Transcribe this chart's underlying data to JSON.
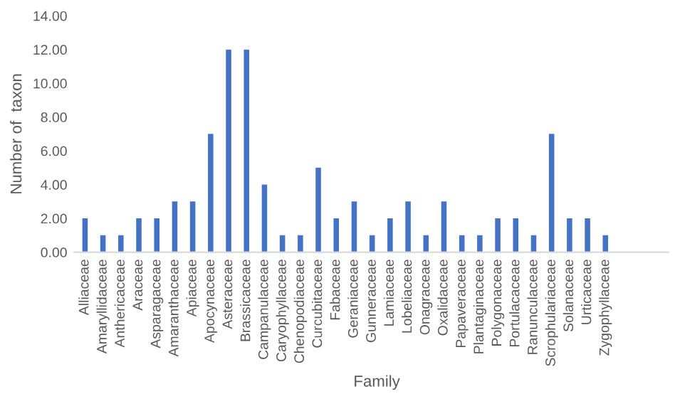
{
  "chart_data": {
    "type": "bar",
    "xlabel": "Family",
    "ylabel": "Number of  taxon",
    "categories": [
      "Alliaceae",
      "Amaryllidaceae",
      "Anthericaceae",
      "Araceae",
      "Asparagaceae",
      "Amaranthaceae",
      "Apiaceae",
      "Apocynaceae",
      "Asteraceae",
      "Brassicaceae",
      "Campanulaceae",
      "Caryophyllaceae",
      "Chenopodiaceae",
      "Curcubitaceae",
      "Fabaceae",
      "Geraniaceae",
      "Gunneraceae",
      "Lamiaceae",
      "Lobeliaceae",
      "Onagraceae",
      "Oxalidaceae",
      "Papaveraceae",
      "Plantaginaceae",
      "Polygonaceae",
      "Portulacaceae",
      "Ranunculaceae",
      "Scrophulariaceae",
      "Solanaceae",
      "Urticaceae",
      "Zygophyllaceae"
    ],
    "values": [
      2,
      1,
      1,
      2,
      2,
      3,
      3,
      7,
      12,
      12,
      4,
      1,
      1,
      5,
      2,
      3,
      1,
      2,
      3,
      1,
      3,
      1,
      1,
      2,
      2,
      1,
      7,
      2,
      2,
      1
    ],
    "color": "#4472c4",
    "ylim": [
      0,
      14
    ],
    "yticks": [
      {
        "value": 0,
        "label": "0.00"
      },
      {
        "value": 2,
        "label": "2.00"
      },
      {
        "value": 4,
        "label": "4.00"
      },
      {
        "value": 6,
        "label": "6.00"
      },
      {
        "value": 8,
        "label": "8.00"
      },
      {
        "value": 10,
        "label": "10.00"
      },
      {
        "value": 12,
        "label": "12.00"
      },
      {
        "value": 14,
        "label": "14.00"
      }
    ],
    "grid": false
  }
}
